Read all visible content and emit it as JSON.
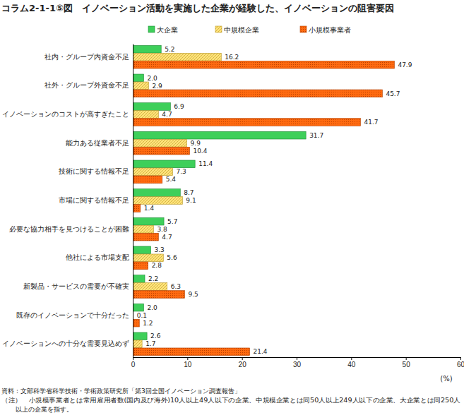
{
  "chart_data": {
    "type": "bar",
    "orientation": "horizontal",
    "title": "コラム2-1-1⑤図　イノベーション活動を実施した企業が経験した、イノベーションの阻害要因",
    "categories": [
      "社内・グループ内資金不足",
      "社外・グループ外資金不足",
      "イノベーションのコストが高すぎたこと",
      "能力ある従業者不足",
      "技術に関する情報不足",
      "市場に関する情報不足",
      "必要な協力相手を見つけることが困難",
      "他社による市場支配",
      "新製品・サービスの需要が不確実",
      "既存のイノベーションで十分だった",
      "イノベーションへの十分な需要見込めず"
    ],
    "series": [
      {
        "name": "大企業",
        "color": "#3ecf5a",
        "values": [
          5.2,
          2.0,
          6.9,
          31.7,
          11.4,
          8.7,
          5.7,
          3.3,
          2.2,
          2.0,
          2.6
        ],
        "value_labels": [
          "5.2",
          "2.0",
          "6.9",
          "31.7",
          "11.4",
          "8.7",
          "5.7",
          "3.3",
          "2.2",
          "2.0",
          "2.6"
        ]
      },
      {
        "name": "中規模企業",
        "color": "#ffe27a",
        "values": [
          16.2,
          2.9,
          4.7,
          9.9,
          7.3,
          9.1,
          3.8,
          5.6,
          6.3,
          0.1,
          1.7
        ],
        "value_labels": [
          "16.2",
          "2.9",
          "4.7",
          "9.9",
          "7.3",
          "9.1",
          "3.8",
          "5.6",
          "6.3",
          "0.1",
          "1.7"
        ]
      },
      {
        "name": "小規模事業者",
        "color": "#ff6a10",
        "values": [
          47.9,
          45.7,
          41.7,
          10.4,
          5.4,
          1.4,
          4.7,
          2.8,
          9.5,
          1.2,
          21.4
        ],
        "value_labels": [
          "47.9",
          "45.7",
          "41.7",
          "10.4",
          "5.4",
          "1.4",
          "4.7",
          "2.8",
          "9.5",
          "1.2",
          "21.4"
        ]
      }
    ],
    "xlim": [
      0,
      60
    ],
    "xticks": [
      0,
      10,
      20,
      30,
      40,
      50,
      60
    ],
    "x_label": "(%)",
    "data_labels": true,
    "legend": "top",
    "notes": [
      "資料：文部科学省科学技術・学術政策研究所「第3回全国イノベーション調査報告」",
      "（注）　小規模事業者とは常用雇用者数(国内及び海外)10人以上49人以下の企業、中規模企業とは同50人以上249人以下の企業、大企業とは同250人",
      "以上の企業を指す。"
    ]
  }
}
